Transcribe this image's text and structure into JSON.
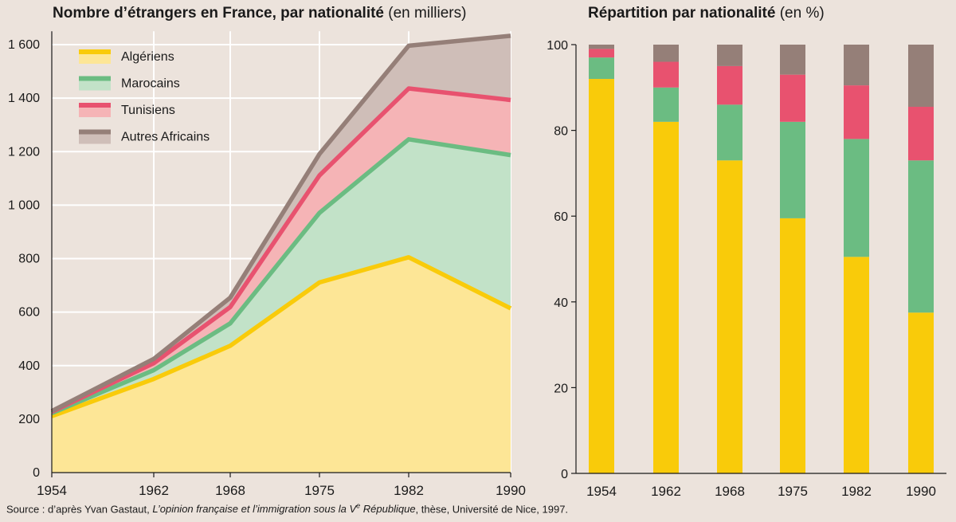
{
  "source": {
    "prefix": "Source : d’après Yvan Gastaut, ",
    "work_title": "L’opinion française et l’immigration sous la V",
    "work_title_sup": "e",
    "work_title_end": " République",
    "suffix": ", thèse, Université de Nice, 1997."
  },
  "colors": {
    "background": "#ece3dc",
    "algeriens_line": "#f9cb0a",
    "algeriens_fill": "#fde696",
    "marocains_line": "#6bbc82",
    "marocains_fill": "#c2e2c8",
    "tunisiens_line": "#e8526f",
    "tunisiens_fill": "#f5b4b6",
    "autres_line": "#957f78",
    "autres_fill": "#cfbeb8"
  },
  "chart_data": [
    {
      "type": "area",
      "stacked": true,
      "title": "Nombre d’étrangers en France, par nationalité",
      "unit": "(en milliers)",
      "x": [
        1954,
        1962,
        1968,
        1975,
        1982,
        1990
      ],
      "xticks": [
        "1954",
        "1962",
        "1968",
        "1975",
        "1982",
        "1990"
      ],
      "yticks": [
        "0",
        "200",
        "400",
        "600",
        "800",
        "1 000",
        "1 200",
        "1 400",
        "1 600"
      ],
      "ylim": [
        0,
        1650
      ],
      "grid": true,
      "legend_position": "top-left",
      "series": [
        {
          "name": "Algériens",
          "color": "algeriens",
          "values": [
            211,
            350,
            474,
            711,
            805,
            614
          ]
        },
        {
          "name": "Marocains",
          "color": "marocains",
          "values": [
            11,
            33,
            84,
            260,
            441,
            573
          ]
        },
        {
          "name": "Tunisiens",
          "color": "tunisiens",
          "values": [
            5,
            26,
            61,
            140,
            190,
            206
          ]
        },
        {
          "name": "Autres Africains",
          "color": "autres",
          "values": [
            3,
            16,
            35,
            80,
            160,
            240
          ]
        }
      ]
    },
    {
      "type": "bar",
      "stacked": true,
      "title": "Répartition par nationalité",
      "unit": "(en %)",
      "categories": [
        "1954",
        "1962",
        "1968",
        "1975",
        "1982",
        "1990"
      ],
      "yticks": [
        "0",
        "20",
        "40",
        "60",
        "80",
        "100"
      ],
      "ylim": [
        0,
        100
      ],
      "series": [
        {
          "name": "Algériens",
          "color": "algeriens",
          "values": [
            92,
            82,
            73,
            59.5,
            50.5,
            37.5
          ]
        },
        {
          "name": "Marocains",
          "color": "marocains",
          "values": [
            5,
            8,
            13,
            22.5,
            27.5,
            35.5
          ]
        },
        {
          "name": "Tunisiens",
          "color": "tunisiens",
          "values": [
            2,
            6,
            9,
            11,
            12.5,
            12.5
          ]
        },
        {
          "name": "Autres Africains",
          "color": "autres",
          "values": [
            1,
            4,
            5,
            7,
            9.5,
            14.5
          ]
        }
      ]
    }
  ]
}
